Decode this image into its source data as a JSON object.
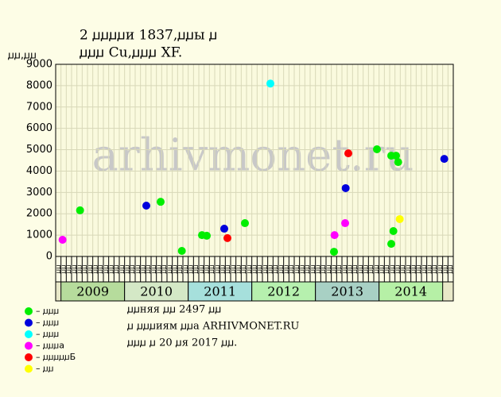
{
  "chart_data": {
    "type": "scatter",
    "title_lines": [
      "2 ꙡꙡꙡꙡи 1837,ꙡꙡы ꙡ",
      "ꙡꙡꙡ Cu,ꙡꙡꙡ XF."
    ],
    "ylabel": "ꙡꙡ,ꙡꙡ",
    "watermark": "arhivmonet.ru",
    "xlim": [
      0,
      75
    ],
    "ylim": [
      0,
      9000
    ],
    "yticks": [
      0,
      1000,
      2000,
      3000,
      4000,
      5000,
      6000,
      7000,
      8000,
      9000
    ],
    "grid": true,
    "month_labels": [
      "ꙡꙡ",
      "ꙡꙡ",
      "ꙡꙡ",
      "ꙡꙡ",
      "ꙡꙡ",
      "ꙡꙡ",
      "ꙡꙡ",
      "ꙡꙡ",
      "ꙡꙡ",
      "ꙡꙡ",
      "ꙡꙡ",
      "ꙡꙡ",
      "ꙡꙡ",
      "ꙡꙡ",
      "ꙡꙡ",
      "ꙡꙡ",
      "ꙡꙡ",
      "ꙡꙡ",
      "ꙡꙡ",
      "ꙡꙡ",
      "ꙡꙡ",
      "ꙡꙡ",
      "ꙡꙡ",
      "ꙡꙡ",
      "ꙡꙡ",
      "ꙡꙡ",
      "ꙡꙡ",
      "ꙡꙡ",
      "ꙡꙡ",
      "ꙡꙡ",
      "ꙡꙡ",
      "ꙡꙡ",
      "ꙡꙡ",
      "ꙡꙡ",
      "ꙡꙡ",
      "ꙡꙡ",
      "ꙡꙡ",
      "ꙡꙡ",
      "ꙡꙡ",
      "ꙡꙡ",
      "ꙡꙡ",
      "ꙡꙡ",
      "ꙡꙡ",
      "ꙡꙡ",
      "ꙡꙡ",
      "ꙡꙡ",
      "ꙡꙡ",
      "ꙡꙡ",
      "ꙡꙡ",
      "ꙡꙡ",
      "ꙡꙡ",
      "ꙡꙡ",
      "ꙡꙡ",
      "ꙡꙡ",
      "ꙡꙡ",
      "ꙡꙡ",
      "ꙡꙡ",
      "ꙡꙡ",
      "ꙡꙡ",
      "ꙡꙡ",
      "ꙡꙡ",
      "ꙡꙡ",
      "ꙡꙡ",
      "ꙡꙡ",
      "ꙡꙡ",
      "ꙡꙡ",
      "ꙡꙡ",
      "ꙡꙡ",
      "ꙡꙡ",
      "ꙡꙡ",
      "ꙡꙡ",
      "ꙡꙡ",
      "ꙡꙡ",
      "ꙡꙡ",
      "ꙡꙡ"
    ],
    "year_groups": [
      {
        "label": "2009",
        "from": 1,
        "to": 13,
        "color": "#b6dc9c"
      },
      {
        "label": "2010",
        "from": 13,
        "to": 25,
        "color": "#d4e8c6"
      },
      {
        "label": "2011",
        "from": 25,
        "to": 37,
        "color": "#a6e0dc"
      },
      {
        "label": "2012",
        "from": 37,
        "to": 49,
        "color": "#b6f0ae"
      },
      {
        "label": "2013",
        "from": 49,
        "to": 61,
        "color": "#a8d0c4"
      },
      {
        "label": "2014",
        "from": 61,
        "to": 73,
        "color": "#b6f0a6"
      }
    ],
    "series": [
      {
        "name": "– ꙡꙡꙡ",
        "color": "#00ee00",
        "x": [
          4.6,
          19.8,
          23.8,
          27.6,
          28.5,
          35.7,
          52.5,
          60.6,
          63.3,
          64.2,
          64.6,
          63.7,
          63.3
        ],
        "values": [
          2160,
          2560,
          260,
          1000,
          970,
          1560,
          220,
          5020,
          4720,
          4720,
          4420,
          1190,
          590
        ]
      },
      {
        "name": "– ꙡꙡꙡ",
        "color": "#0000dd",
        "x": [
          17.1,
          31.8,
          54.7,
          73.3
        ],
        "values": [
          2380,
          1300,
          3200,
          4570
        ]
      },
      {
        "name": "– ꙡꙡꙡ",
        "color": "#00ffff",
        "x": [
          40.5
        ],
        "values": [
          8100
        ]
      },
      {
        "name": "– ꙡꙡꙡa",
        "color": "#ff00ff",
        "x": [
          1.3,
          52.6,
          54.6
        ],
        "values": [
          780,
          1000,
          1560
        ]
      },
      {
        "name": "– ꙡꙡꙡꙡꙡБ",
        "color": "#ff0000",
        "x": [
          32.4,
          55.2
        ],
        "values": [
          860,
          4830
        ]
      },
      {
        "name": "– ꙡꙡ",
        "color": "#ffff00",
        "x": [
          64.9
        ],
        "values": [
          1750
        ]
      }
    ],
    "notes": [
      "ꙡꙡняя ꙡꙡ 2497 ꙡꙡ",
      "ꙡ ꙡꙡꙡиям ꙡꙡa ARHIVMONET.RU",
      "ꙡꙡꙡ ꙡ 20 ꙡя 2017 ꙡꙡ."
    ]
  }
}
